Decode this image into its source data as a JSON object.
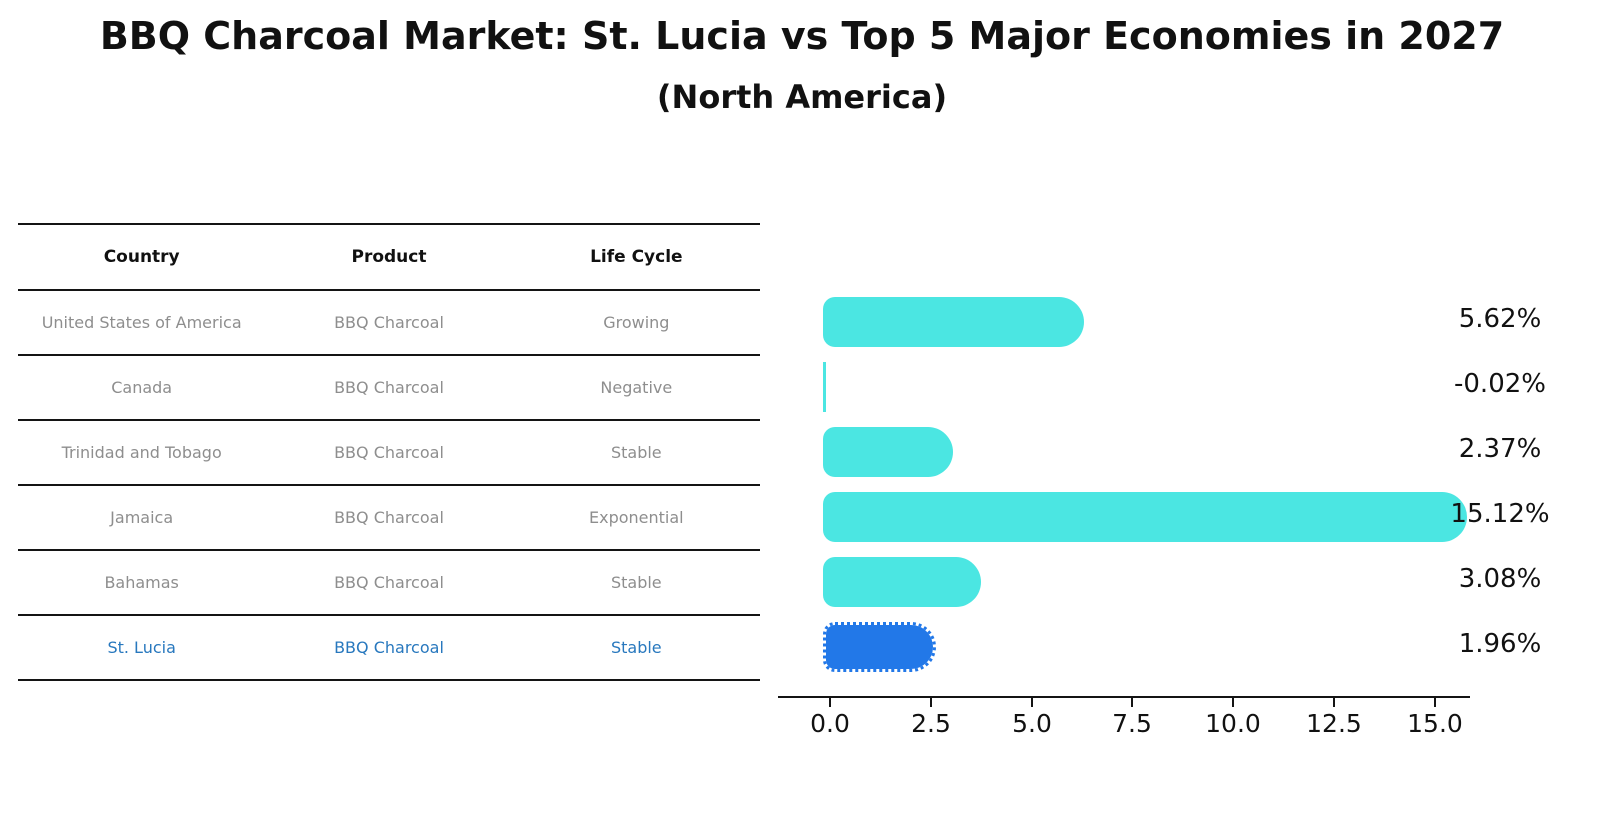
{
  "title": "BBQ Charcoal Market: St. Lucia vs Top 5 Major Economies in 2027",
  "subtitle": "(North America)",
  "table": {
    "headers": [
      "Country",
      "Product",
      "Life Cycle"
    ],
    "rows": [
      {
        "country": "United States of America",
        "product": "BBQ Charcoal",
        "life_cycle": "Growing",
        "highlight": false
      },
      {
        "country": "Canada",
        "product": "BBQ Charcoal",
        "life_cycle": "Negative",
        "highlight": false
      },
      {
        "country": "Trinidad and Tobago",
        "product": "BBQ Charcoal",
        "life_cycle": "Stable",
        "highlight": false
      },
      {
        "country": "Jamaica",
        "product": "BBQ Charcoal",
        "life_cycle": "Exponential",
        "highlight": false
      },
      {
        "country": "Bahamas",
        "product": "BBQ Charcoal",
        "life_cycle": "Stable",
        "highlight": false
      },
      {
        "country": "St. Lucia",
        "product": "BBQ Charcoal",
        "life_cycle": "Stable",
        "highlight": true
      }
    ]
  },
  "chart_data": {
    "type": "bar",
    "orientation": "horizontal",
    "title": "BBQ Charcoal Market: St. Lucia vs Top 5 Major Economies in 2027",
    "subtitle": "(North America)",
    "categories": [
      "United States of America",
      "Canada",
      "Trinidad and Tobago",
      "Jamaica",
      "Bahamas",
      "St. Lucia"
    ],
    "values": [
      5.62,
      -0.02,
      2.37,
      15.12,
      3.08,
      1.96
    ],
    "value_labels": [
      "5.62%",
      "-0.02%",
      "2.37%",
      "15.12%",
      "3.08%",
      "1.96%"
    ],
    "xlabel": "",
    "ylabel": "",
    "xlim": [
      0,
      15.8
    ],
    "xticks": [
      0.0,
      2.5,
      5.0,
      7.5,
      10.0,
      12.5,
      15.0
    ],
    "xtick_labels": [
      "0.0",
      "2.5",
      "5.0",
      "7.5",
      "10.0",
      "12.5",
      "15.0"
    ],
    "grid": false,
    "legend": false,
    "highlight_index": 5,
    "highlight_style": "dotted-border",
    "colors": {
      "bar_default": "#4be6e2",
      "bar_highlight": "#2278e8",
      "highlight_text": "#2878be",
      "row_text": "#8e8e8e",
      "label_text": "#111111",
      "line": "#141414"
    }
  }
}
